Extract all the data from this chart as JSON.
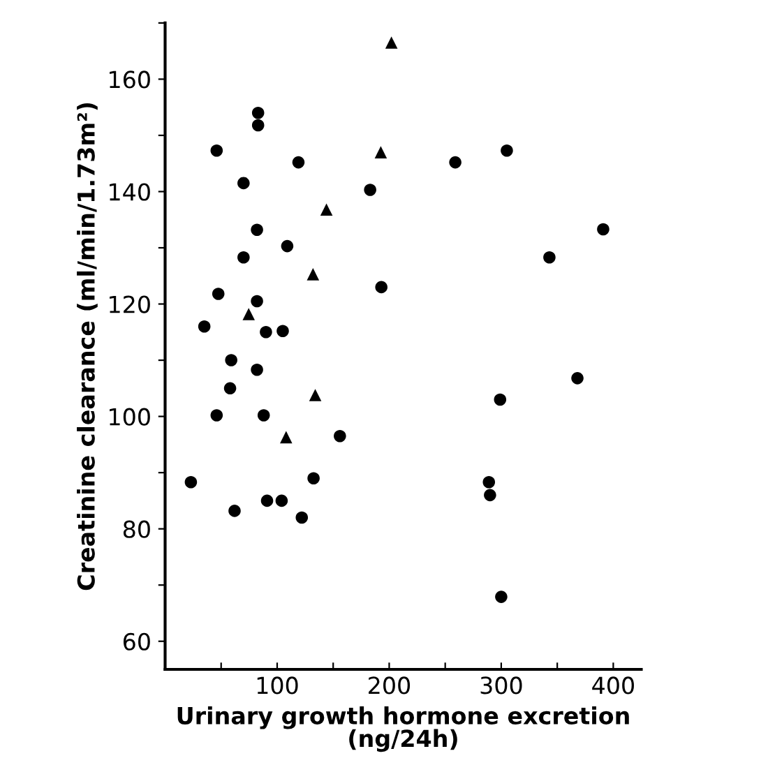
{
  "chart_data": {
    "type": "scatter",
    "xlabel": "Urinary growth hormone excretion\n(ng/24h)",
    "ylabel": "Creatinine clearance (ml/min/1.73m²)",
    "xlim": [
      0,
      425
    ],
    "ylim": [
      55,
      170
    ],
    "xticks": [
      {
        "value": 50,
        "label": null
      },
      100,
      {
        "value": 150,
        "label": null
      },
      200,
      {
        "value": 250,
        "label": null
      },
      300,
      {
        "value": 350,
        "label": null
      },
      400
    ],
    "yticks": [
      60,
      {
        "value": 70,
        "label": null
      },
      80,
      {
        "value": 90,
        "label": null
      },
      100,
      {
        "value": 110,
        "label": null
      },
      120,
      {
        "value": 130,
        "label": null
      },
      140,
      {
        "value": 150,
        "label": null
      },
      160,
      {
        "value": 170,
        "label": null
      }
    ],
    "grid": false,
    "series": [
      {
        "color": "#000000",
        "marker": "circle",
        "x": [
          46,
          83,
          83,
          119,
          70,
          183,
          82,
          109,
          70,
          47.5,
          82,
          193,
          35,
          90,
          105,
          59,
          82,
          58,
          46,
          88,
          156,
          23,
          132.5,
          91,
          104,
          62,
          122,
          259,
          305,
          391,
          343,
          368,
          299,
          289,
          290,
          300
        ],
        "values": [
          147.3,
          154,
          151.8,
          145.2,
          141.5,
          140.3,
          133.2,
          130.3,
          128.3,
          121.8,
          120.5,
          123,
          116,
          115,
          115.2,
          110,
          108.3,
          105,
          100.2,
          100.2,
          96.5,
          88.3,
          89,
          85,
          85,
          83.2,
          82,
          145.2,
          147.3,
          133.3,
          128.3,
          106.8,
          103,
          88.3,
          86,
          67.9
        ]
      },
      {
        "color": "#000000",
        "marker": "triangle",
        "x": [
          202,
          192.5,
          144,
          132,
          74.6,
          134,
          108
        ],
        "values": [
          166.5,
          147,
          136.8,
          125.3,
          118.2,
          103.8,
          96.3
        ]
      }
    ]
  }
}
